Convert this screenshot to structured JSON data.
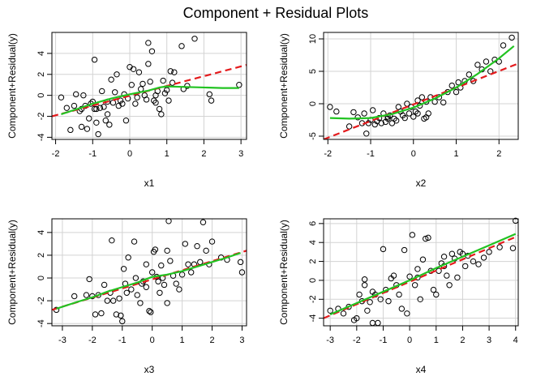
{
  "figure": {
    "title": "Component + Residual Plots"
  },
  "colors": {
    "linear_fit": "#e41a1c",
    "smooth_fit": "#22c322",
    "grid": "#d3d3d3",
    "points": "#000000"
  },
  "chart_data": [
    {
      "type": "scatter",
      "xlabel": "x1",
      "ylabel": "Component+Residual(y)",
      "xlim": [
        -2.1,
        3.15
      ],
      "ylim": [
        -4.2,
        6.0
      ],
      "xticks": [
        -2,
        -1,
        0,
        1,
        2,
        3
      ],
      "yticks": [
        -4,
        -2,
        0,
        2,
        4
      ],
      "grid": true,
      "x": [
        -1.85,
        -1.7,
        -1.6,
        -1.5,
        -1.45,
        -1.35,
        -1.3,
        -1.25,
        -1.2,
        -1.15,
        -1.1,
        -1.05,
        -1.0,
        -0.95,
        -0.95,
        -0.9,
        -0.85,
        -0.8,
        -0.75,
        -0.7,
        -0.65,
        -0.6,
        -0.55,
        -0.5,
        -0.45,
        -0.4,
        -0.35,
        -0.3,
        -0.25,
        -0.2,
        -0.15,
        -0.1,
        -0.05,
        0.0,
        0.05,
        0.1,
        0.15,
        0.2,
        0.25,
        0.3,
        0.35,
        0.4,
        0.45,
        0.5,
        0.55,
        0.6,
        0.65,
        0.7,
        0.75,
        0.8,
        0.85,
        0.9,
        0.95,
        1.0,
        1.05,
        1.1,
        1.15,
        1.2,
        1.4,
        1.45,
        1.55,
        1.75,
        2.15,
        2.2,
        2.95,
        -0.9,
        -1.3,
        -0.6,
        0.5,
        0.7
      ],
      "y": [
        -0.2,
        -1.2,
        -3.3,
        -1.0,
        0.1,
        -1.5,
        -3.0,
        0.0,
        -1.0,
        -3.2,
        -2.2,
        -0.8,
        -0.6,
        3.4,
        -1.3,
        -2.6,
        -3.7,
        -1.2,
        0.4,
        -1.1,
        -2.4,
        -0.6,
        -2.8,
        1.5,
        -0.7,
        0.3,
        2.0,
        -1.0,
        -0.5,
        -0.8,
        0.1,
        -2.4,
        -0.3,
        2.7,
        1.0,
        2.5,
        -0.8,
        -0.2,
        2.2,
        0.6,
        1.1,
        0.0,
        -0.4,
        5.0,
        1.3,
        4.2,
        -0.5,
        -0.7,
        0.4,
        -1.3,
        -1.8,
        1.4,
        0.2,
        0.5,
        -0.5,
        2.3,
        1.2,
        2.2,
        4.7,
        0.6,
        0.9,
        5.4,
        0.1,
        -0.5,
        1.0,
        -1.3,
        -1.3,
        -1.8,
        3.0,
        0.0
      ],
      "linear_fit": {
        "x": [
          -2.1,
          3.15
        ],
        "y": [
          -2.0,
          2.9
        ]
      },
      "smooth_fit": {
        "x": [
          -1.85,
          -1.5,
          -1.0,
          -0.5,
          0.0,
          0.5,
          0.8,
          1.0,
          1.5,
          2.0,
          2.5,
          2.95
        ],
        "y": [
          -1.8,
          -1.4,
          -0.8,
          -0.3,
          0.1,
          0.45,
          0.75,
          0.85,
          0.8,
          0.75,
          0.7,
          0.7
        ]
      }
    },
    {
      "type": "scatter",
      "xlabel": "x2",
      "ylabel": "Component+Residual(y)",
      "xlim": [
        -2.1,
        2.45
      ],
      "ylim": [
        -5.5,
        11.0
      ],
      "xticks": [
        -2,
        -1,
        0,
        1,
        2
      ],
      "yticks": [
        -5,
        0,
        5,
        10
      ],
      "grid": true,
      "x": [
        -1.95,
        -1.8,
        -1.5,
        -1.4,
        -1.3,
        -1.2,
        -1.15,
        -1.1,
        -1.05,
        -1.0,
        -0.95,
        -0.9,
        -0.85,
        -0.8,
        -0.75,
        -0.7,
        -0.65,
        -0.6,
        -0.55,
        -0.5,
        -0.45,
        -0.4,
        -0.35,
        -0.3,
        -0.25,
        -0.2,
        -0.15,
        -0.1,
        -0.05,
        0.0,
        0.05,
        0.1,
        0.15,
        0.2,
        0.25,
        0.3,
        0.35,
        0.4,
        0.5,
        0.6,
        0.7,
        0.8,
        0.9,
        1.0,
        1.05,
        1.1,
        1.2,
        1.3,
        1.4,
        1.5,
        1.6,
        1.7,
        1.8,
        1.9,
        2.0,
        2.1,
        2.3,
        0.1,
        -0.6,
        0.3
      ],
      "y": [
        -0.5,
        -1.2,
        -3.5,
        -1.3,
        -2.1,
        -3.0,
        -1.5,
        -4.6,
        -3.0,
        -2.5,
        -1.0,
        -3.2,
        -2.7,
        -2.2,
        -3.0,
        -1.5,
        -2.8,
        -2.0,
        -1.8,
        -3.0,
        -2.3,
        -2.6,
        -0.5,
        -1.2,
        -1.8,
        -2.2,
        0.0,
        -1.5,
        -0.5,
        -2.0,
        -1.2,
        0.5,
        -0.3,
        1.0,
        -2.3,
        0.3,
        -1.5,
        1.0,
        0.3,
        1.0,
        0.2,
        1.8,
        2.8,
        1.8,
        3.3,
        2.5,
        3.5,
        4.5,
        3.5,
        6.0,
        5.3,
        6.5,
        5.0,
        6.8,
        6.5,
        9.0,
        10.2,
        -1.5,
        -2.3,
        -2.1
      ],
      "linear_fit": {
        "x": [
          -2.1,
          2.45
        ],
        "y": [
          -5.5,
          6.2
        ]
      },
      "smooth_fit": {
        "x": [
          -1.95,
          -1.5,
          -1.0,
          -0.5,
          0.0,
          0.5,
          1.0,
          1.5,
          2.0,
          2.35
        ],
        "y": [
          -2.2,
          -2.3,
          -2.2,
          -1.6,
          -0.6,
          0.8,
          2.5,
          4.6,
          7.0,
          8.9
        ]
      }
    },
    {
      "type": "scatter",
      "xlabel": "x3",
      "ylabel": "Component+Residual(y)",
      "xlim": [
        -3.35,
        3.15
      ],
      "ylim": [
        -4.2,
        5.2
      ],
      "xticks": [
        -3,
        -2,
        -1,
        0,
        1,
        2,
        3
      ],
      "yticks": [
        -4,
        -2,
        0,
        2,
        4
      ],
      "grid": true,
      "x": [
        -3.2,
        -2.6,
        -2.2,
        -2.1,
        -2.0,
        -1.9,
        -1.8,
        -1.7,
        -1.6,
        -1.5,
        -1.4,
        -1.35,
        -1.3,
        -1.2,
        -1.1,
        -1.05,
        -1.0,
        -0.95,
        -0.9,
        -0.85,
        -0.8,
        -0.7,
        -0.6,
        -0.55,
        -0.5,
        -0.4,
        -0.35,
        -0.3,
        -0.2,
        -0.1,
        -0.05,
        0.0,
        0.05,
        0.1,
        0.15,
        0.2,
        0.3,
        0.35,
        0.4,
        0.5,
        0.55,
        0.6,
        0.7,
        0.8,
        0.9,
        1.0,
        1.1,
        1.2,
        1.3,
        1.4,
        1.5,
        1.6,
        1.7,
        1.8,
        1.9,
        2.0,
        2.3,
        2.5,
        2.95,
        3.0,
        0.5,
        -0.2,
        0.25
      ],
      "y": [
        -2.8,
        -1.6,
        -1.5,
        -0.1,
        -1.6,
        -3.2,
        -1.5,
        -3.1,
        -0.6,
        -2.0,
        -1.3,
        3.3,
        -2.0,
        -3.2,
        -1.8,
        -3.3,
        -3.8,
        0.8,
        -0.5,
        -1.3,
        1.8,
        -1.0,
        3.2,
        0.0,
        -1.5,
        -2.2,
        -0.5,
        -0.3,
        1.2,
        -2.9,
        -3.0,
        0.5,
        2.3,
        2.5,
        0.1,
        -0.3,
        1.1,
        0.0,
        -0.6,
        2.4,
        5.0,
        1.5,
        0.2,
        -0.5,
        -1.0,
        0.3,
        3.0,
        1.2,
        0.5,
        1.2,
        2.8,
        1.4,
        4.9,
        2.4,
        1.2,
        3.2,
        1.8,
        1.6,
        1.4,
        0.5,
        -2.2,
        -0.8,
        -1.3
      ],
      "linear_fit": {
        "x": [
          -3.35,
          3.15
        ],
        "y": [
          -2.8,
          2.4
        ]
      },
      "smooth_fit": {
        "x": [
          -3.2,
          -2.5,
          -2.0,
          -1.5,
          -1.0,
          -0.5,
          0.0,
          0.5,
          1.0,
          1.5,
          2.0,
          2.5,
          2.95
        ],
        "y": [
          -2.7,
          -2.1,
          -1.7,
          -1.2,
          -0.8,
          -0.4,
          0.1,
          0.3,
          0.6,
          1.0,
          1.4,
          1.8,
          2.2
        ]
      }
    },
    {
      "type": "scatter",
      "xlabel": "x4",
      "ylabel": "Component+Residual(y)",
      "xlim": [
        -3.25,
        4.1
      ],
      "ylim": [
        -4.8,
        6.5
      ],
      "xticks": [
        -3,
        -2,
        -1,
        0,
        1,
        2,
        3,
        4
      ],
      "yticks": [
        -4,
        -2,
        0,
        2,
        4,
        6
      ],
      "grid": true,
      "x": [
        -3.0,
        -2.7,
        -2.5,
        -2.3,
        -2.1,
        -2.0,
        -1.9,
        -1.8,
        -1.7,
        -1.6,
        -1.5,
        -1.4,
        -1.3,
        -1.2,
        -1.1,
        -1.0,
        -0.9,
        -0.8,
        -0.7,
        -0.6,
        -0.5,
        -0.4,
        -0.3,
        -0.2,
        -0.1,
        0.0,
        0.1,
        0.2,
        0.3,
        0.4,
        0.5,
        0.6,
        0.7,
        0.8,
        0.9,
        1.0,
        1.1,
        1.2,
        1.3,
        1.4,
        1.5,
        1.6,
        1.7,
        1.8,
        1.9,
        2.0,
        2.1,
        2.2,
        2.4,
        2.6,
        2.8,
        3.0,
        3.4,
        3.9,
        4.0,
        -1.7,
        -1.4,
        0.3,
        1.3
      ],
      "y": [
        -3.2,
        -3.0,
        -3.5,
        -2.8,
        -4.2,
        -4.0,
        -1.5,
        -2.2,
        0.1,
        -3.2,
        -2.3,
        -4.5,
        -1.5,
        -4.5,
        -2.0,
        3.3,
        -1.0,
        -2.2,
        0.2,
        0.5,
        -0.5,
        -1.5,
        -3.0,
        3.2,
        -3.5,
        0.4,
        4.8,
        -0.5,
        1.2,
        -2.0,
        2.2,
        4.4,
        4.5,
        1.0,
        -1.0,
        -1.5,
        1.0,
        1.8,
        2.5,
        0.5,
        -0.5,
        2.8,
        2.3,
        0.3,
        3.0,
        2.8,
        1.5,
        2.6,
        2.0,
        1.7,
        2.4,
        3.0,
        3.5,
        3.4,
        6.3,
        -0.5,
        -1.2,
        0.3,
        1.5
      ],
      "linear_fit": {
        "x": [
          -3.25,
          4.1
        ],
        "y": [
          -4.0,
          4.7
        ]
      },
      "smooth_fit": {
        "x": [
          -3.0,
          -2.0,
          -1.0,
          0.0,
          1.0,
          2.0,
          3.0,
          4.0
        ],
        "y": [
          -3.6,
          -2.4,
          -1.2,
          0.0,
          1.3,
          2.5,
          3.7,
          4.9
        ]
      }
    }
  ]
}
